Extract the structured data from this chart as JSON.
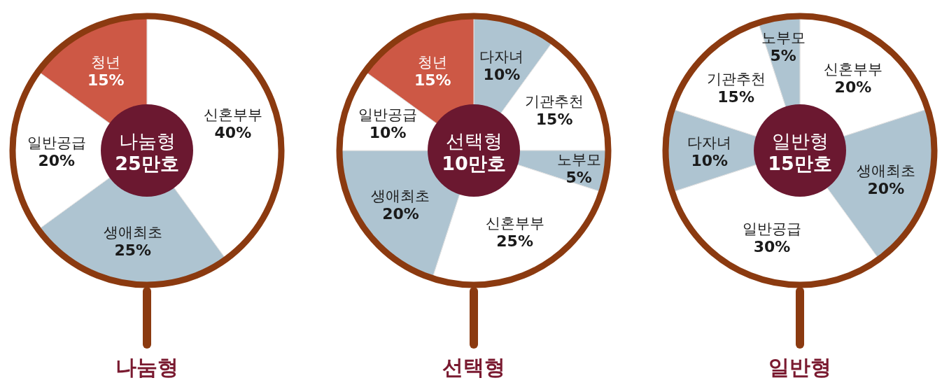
{
  "chart_data": [
    {
      "type": "donut",
      "title": "나눔형",
      "annotations": [
        "나눔형",
        "25만호"
      ],
      "categories": [
        "신혼부부",
        "생애최초",
        "일반공급",
        "청년"
      ],
      "values": [
        40,
        25,
        20,
        15
      ],
      "value_labels": [
        "40%",
        "25%",
        "20%",
        "15%"
      ],
      "colors": [
        "#ffffff",
        "#aec4d1",
        "#ffffff",
        "#cd5845"
      ],
      "legend": false
    },
    {
      "type": "donut",
      "title": "선택형",
      "annotations": [
        "선택형",
        "10만호"
      ],
      "categories": [
        "다자녀",
        "기관추천",
        "노부모",
        "신혼부부",
        "생애최초",
        "일반공급",
        "청년"
      ],
      "values": [
        10,
        15,
        5,
        25,
        20,
        10,
        15
      ],
      "value_labels": [
        "10%",
        "15%",
        "5%",
        "25%",
        "20%",
        "10%",
        "15%"
      ],
      "colors": [
        "#aec4d1",
        "#ffffff",
        "#aec4d1",
        "#ffffff",
        "#aec4d1",
        "#ffffff",
        "#cd5845"
      ],
      "legend": false
    },
    {
      "type": "donut",
      "title": "일반형",
      "annotations": [
        "일반형",
        "15만호"
      ],
      "categories": [
        "신혼부부",
        "생애최초",
        "일반공급",
        "다자녀",
        "기관추천",
        "노부모"
      ],
      "values": [
        20,
        20,
        30,
        10,
        15,
        5
      ],
      "value_labels": [
        "20%",
        "20%",
        "30%",
        "10%",
        "15%",
        "5%"
      ],
      "colors": [
        "#ffffff",
        "#aec4d1",
        "#ffffff",
        "#aec4d1",
        "#ffffff",
        "#aec4d1"
      ],
      "legend": false
    }
  ]
}
